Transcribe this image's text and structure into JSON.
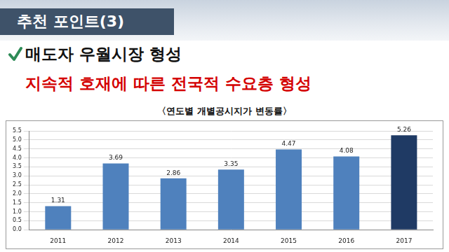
{
  "slide": {
    "header": "추천 포인트(3)",
    "headline": "매도자 우월시장 형성",
    "subheadline": "지속적 호재에 따른 전국적 수요층 형성"
  },
  "chart_data": {
    "type": "bar",
    "title": "〈연도별 개별공시지가 변동률〉",
    "categories": [
      "2011",
      "2012",
      "2013",
      "2014",
      "2015",
      "2016",
      "2017"
    ],
    "values": [
      1.31,
      3.69,
      2.86,
      3.35,
      4.47,
      4.08,
      5.26
    ],
    "colors": [
      "#4f81bd",
      "#4f81bd",
      "#4f81bd",
      "#4f81bd",
      "#4f81bd",
      "#4f81bd",
      "#1f3a64"
    ],
    "ylim": [
      0,
      5.5
    ],
    "yticks": [
      {
        "value": 0,
        "label": "0.0"
      },
      0.5,
      {
        "value": 1,
        "label": "1.0"
      },
      1.5,
      {
        "value": 2,
        "label": "2.0"
      },
      2.5,
      {
        "value": 3,
        "label": "3.0"
      },
      3.5,
      {
        "value": 4,
        "label": "4.0"
      },
      4.5,
      {
        "value": 5,
        "label": "5.0"
      },
      5.5
    ],
    "grid": true,
    "data_labels": true
  }
}
